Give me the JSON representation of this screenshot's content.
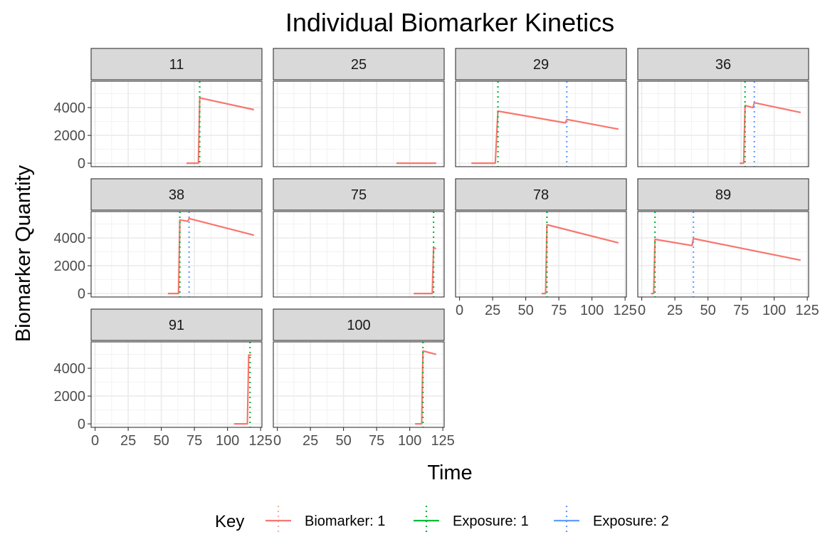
{
  "chart_data": {
    "type": "line",
    "title": "Individual Biomarker Kinetics",
    "xlabel": "Time",
    "ylabel": "Biomarker Quantity",
    "xlim": [
      -3,
      126
    ],
    "ylim": [
      -250,
      5900
    ],
    "x_ticks": [
      "0",
      "25",
      "50",
      "75",
      "100",
      "125"
    ],
    "x_tick_values": [
      0,
      25,
      50,
      75,
      100,
      125
    ],
    "y_ticks": [
      "0",
      "2000",
      "4000"
    ],
    "y_tick_values": [
      0,
      2000,
      4000
    ],
    "grid": true,
    "legend": {
      "position": "bottom",
      "title": "Key",
      "entries": [
        {
          "label": "Biomarker: 1",
          "color": "#F8766D",
          "kind": "line"
        },
        {
          "label": "Exposure: 1",
          "color": "#00BA38",
          "kind": "vline"
        },
        {
          "label": "Exposure: 2",
          "color": "#619CFF",
          "kind": "vline"
        }
      ]
    },
    "panels": [
      {
        "label": "11",
        "series": [
          {
            "name": "Biomarker: 1",
            "x": [
              69,
              78,
              79,
              120
            ],
            "y": [
              0,
              0,
              4700,
              3850
            ]
          }
        ],
        "exposures": [
          {
            "name": "Exposure: 1",
            "x": 79
          }
        ]
      },
      {
        "label": "25",
        "series": [
          {
            "name": "Biomarker: 1",
            "x": [
              90,
              120
            ],
            "y": [
              0,
              0
            ]
          }
        ],
        "exposures": []
      },
      {
        "label": "29",
        "series": [
          {
            "name": "Biomarker: 1",
            "x": [
              9,
              27,
              29,
              80,
              81,
              120
            ],
            "y": [
              0,
              0,
              3750,
              2900,
              3150,
              2450
            ]
          }
        ],
        "exposures": [
          {
            "name": "Exposure: 1",
            "x": 29
          },
          {
            "name": "Exposure: 2",
            "x": 81
          }
        ]
      },
      {
        "label": "36",
        "series": [
          {
            "name": "Biomarker: 1",
            "x": [
              74,
              77,
              78,
              84,
              85,
              120
            ],
            "y": [
              0,
              0,
              4150,
              4000,
              4350,
              3650
            ]
          }
        ],
        "exposures": [
          {
            "name": "Exposure: 1",
            "x": 78
          },
          {
            "name": "Exposure: 2",
            "x": 85
          }
        ]
      },
      {
        "label": "38",
        "series": [
          {
            "name": "Biomarker: 1",
            "x": [
              55,
              63,
              64,
              70,
              71,
              120
            ],
            "y": [
              0,
              0,
              5300,
              5200,
              5400,
              4200
            ]
          }
        ],
        "exposures": [
          {
            "name": "Exposure: 1",
            "x": 64
          },
          {
            "name": "Exposure: 2",
            "x": 71
          }
        ]
      },
      {
        "label": "75",
        "series": [
          {
            "name": "Biomarker: 1",
            "x": [
              103,
              117,
              118,
              120
            ],
            "y": [
              0,
              0,
              3250,
              3250
            ]
          }
        ],
        "exposures": [
          {
            "name": "Exposure: 1",
            "x": 118
          }
        ]
      },
      {
        "label": "78",
        "series": [
          {
            "name": "Biomarker: 1",
            "x": [
              62,
              65,
              66,
              120
            ],
            "y": [
              0,
              0,
              4950,
              3650
            ]
          }
        ],
        "exposures": [
          {
            "name": "Exposure: 1",
            "x": 66
          }
        ]
      },
      {
        "label": "89",
        "series": [
          {
            "name": "Biomarker: 1",
            "x": [
              7,
              9,
              10,
              38,
              39,
              120
            ],
            "y": [
              0,
              0,
              3900,
              3450,
              3950,
              2400
            ]
          }
        ],
        "exposures": [
          {
            "name": "Exposure: 1",
            "x": 10
          },
          {
            "name": "Exposure: 2",
            "x": 39
          }
        ]
      },
      {
        "label": "91",
        "series": [
          {
            "name": "Biomarker: 1",
            "x": [
              105,
              115,
              116,
              118
            ],
            "y": [
              0,
              0,
              4950,
              4950
            ]
          }
        ],
        "exposures": [
          {
            "name": "Exposure: 1",
            "x": 117
          }
        ]
      },
      {
        "label": "100",
        "series": [
          {
            "name": "Biomarker: 1",
            "x": [
              104,
              109,
              110,
              120
            ],
            "y": [
              0,
              0,
              5250,
              5000
            ]
          }
        ],
        "exposures": [
          {
            "name": "Exposure: 1",
            "x": 110
          }
        ]
      }
    ]
  }
}
